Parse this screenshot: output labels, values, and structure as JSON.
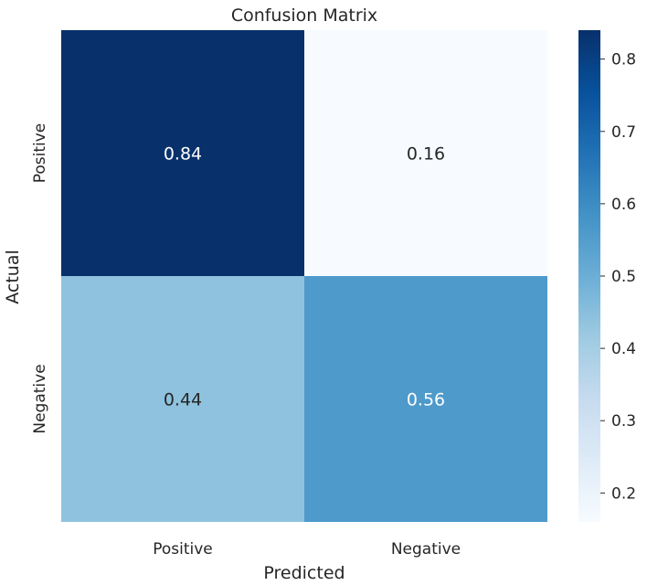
{
  "chart_data": {
    "type": "heatmap",
    "title": "Confusion Matrix",
    "xlabel": "Predicted",
    "ylabel": "Actual",
    "x_categories": [
      "Positive",
      "Negative"
    ],
    "y_categories": [
      "Positive",
      "Negative"
    ],
    "values": [
      [
        0.84,
        0.16
      ],
      [
        0.44,
        0.56
      ]
    ],
    "value_labels": [
      [
        "0.84",
        "0.16"
      ],
      [
        "0.44",
        "0.56"
      ]
    ],
    "colormap": "Blues",
    "colorbar": {
      "range": [
        0.16,
        0.84
      ],
      "ticks": [
        0.2,
        0.3,
        0.4,
        0.5,
        0.6,
        0.7,
        0.8
      ],
      "tick_labels": [
        "0.2",
        "0.3",
        "0.4",
        "0.5",
        "0.6",
        "0.7",
        "0.8"
      ]
    }
  }
}
